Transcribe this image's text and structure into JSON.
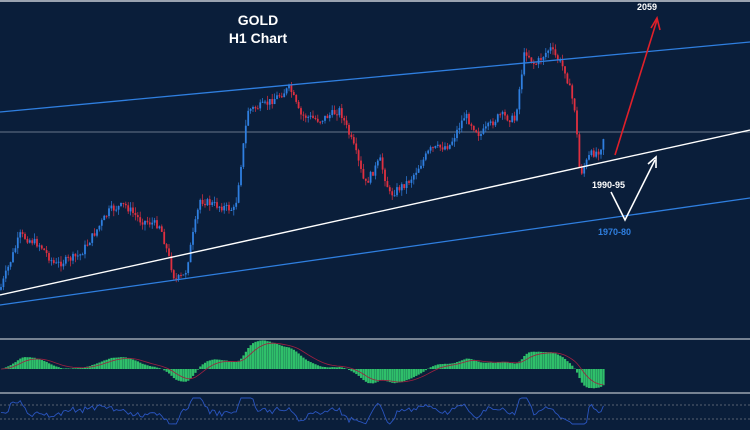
{
  "chart_data": {
    "type": "candlestick",
    "title": "GOLD",
    "subtitle": "H1 Chart",
    "symbol": "GOLD",
    "timeframe": "H1",
    "closes": [
      1951.6,
      1972.3,
      1968.6,
      1961.0,
      1964.8,
      1981.8,
      1983.7,
      1978.0,
      1976.1,
      1955.3,
      1957.2,
      1985.6,
      1983.7,
      1981.8,
      2019.6,
      2021.5,
      2027.9,
      2017.7,
      2015.8,
      2019.6,
      2004.5,
      1991.2,
      2000.7,
      1987.5,
      1993.1,
      2004.5,
      2006.4,
      2017.7,
      2010.1,
      2017.7,
      2015.8,
      2042.3,
      2036.6,
      2043.0,
      2034.7,
      2019.6,
      1995.0,
      2002.6,
      2004.5,
      2011.3
    ],
    "annotations": [
      {
        "text": "2059",
        "color": "#ffffff"
      },
      {
        "text": "1990-95",
        "color": "#ffffff"
      },
      {
        "text": "1970-80",
        "color": "#2f7fe0"
      }
    ],
    "lines": [
      "upper channel (blue)",
      "rising trendline (white)",
      "lower channel (blue)",
      "horizontal level (grey)"
    ],
    "indicators": [
      "MACD histogram with signal line",
      "RSI oscillator"
    ],
    "colors": {
      "background": "#0a1e3a",
      "bull": "#2f7fe0",
      "bear": "#e03040",
      "channel": "#2f7fe0",
      "trend": "#ffffff",
      "target_arrow": "#e0202a",
      "macd": "#2fbf6a",
      "signal": "#a02040",
      "rsi": "#2a55c0"
    },
    "grid": false
  }
}
